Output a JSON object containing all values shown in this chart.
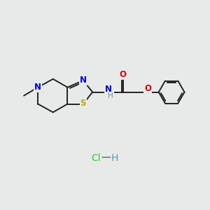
{
  "background_color": "#e8eaea",
  "figsize": [
    3.0,
    3.0
  ],
  "dpi": 100,
  "atom_colors": {
    "C": "#000000",
    "N": "#0000dd",
    "O": "#dd0000",
    "S": "#bbaa00",
    "H_amide": "#5599aa",
    "H_hcl": "#5599aa",
    "Cl": "#33cc33"
  },
  "bond_color": "#222222",
  "bond_width": 1.4,
  "font_size_atom": 8.5,
  "font_size_small": 7.5
}
